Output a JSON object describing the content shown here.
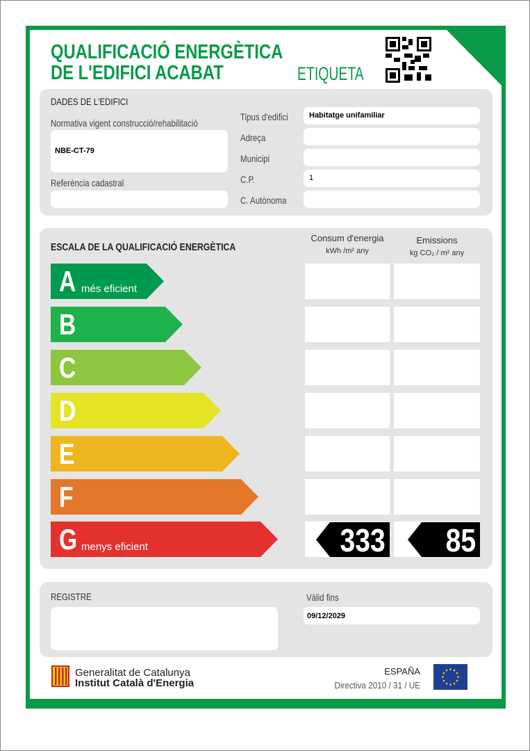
{
  "header": {
    "title_line1": "QUALIFICACIÓ ENERGÈTICA",
    "title_line2": "DE L'EDIFICI ACABAT",
    "label_type": "ETIQUETA",
    "qr_icon": "qr-code-icon"
  },
  "building": {
    "section_title": "DADES DE L'EDIFICI",
    "normativa_label": "Normativa vigent construcció/rehabilitació",
    "normativa_value": "NBE-CT-79",
    "referencia_label": "Referència cadastral",
    "referencia_value": "",
    "tipus_label": "Tipus d'edifici",
    "tipus_value": "Habitatge unifamiliar",
    "adreca_label": "Adreça",
    "adreca_value": "",
    "municipi_label": "Municipi",
    "municipi_value": "",
    "cp_label": "C.P.",
    "cp_value": "1",
    "autonoma_label": "C. Autònoma",
    "autonoma_value": ""
  },
  "scale": {
    "title": "ESCALA DE LA QUALIFICACIÓ ENERGÈTICA",
    "col_energy_title": "Consum d'energia",
    "col_energy_unit": "kWh /m² any",
    "col_emissions_title": "Emissions",
    "col_emissions_unit": "kg CO₂ / m² any",
    "classes": [
      {
        "letter": "A",
        "sub": "més eficient",
        "color": "#009a4e"
      },
      {
        "letter": "B",
        "sub": "",
        "color": "#1db24b"
      },
      {
        "letter": "C",
        "sub": "",
        "color": "#8dc63f"
      },
      {
        "letter": "D",
        "sub": "",
        "color": "#e4e424"
      },
      {
        "letter": "E",
        "sub": "",
        "color": "#efb51f"
      },
      {
        "letter": "F",
        "sub": "",
        "color": "#e4782a"
      },
      {
        "letter": "G",
        "sub": "menys eficient",
        "color": "#e3312d"
      }
    ],
    "rating_class": "G",
    "energy_value": "333",
    "emissions_value": "85"
  },
  "registry": {
    "title": "REGISTRE",
    "value": "",
    "valid_label": "Vàlid fins",
    "valid_value": "09/12/2029"
  },
  "footer": {
    "org_line1": "Generalitat de Catalunya",
    "org_line2": "Institut Català d'Energia",
    "country": "ESPAÑA",
    "directive": "Directiva 2010 / 31 / UE"
  },
  "colors": {
    "brand_green": "#0a9a48",
    "panel_gray": "#e4e4e4"
  }
}
